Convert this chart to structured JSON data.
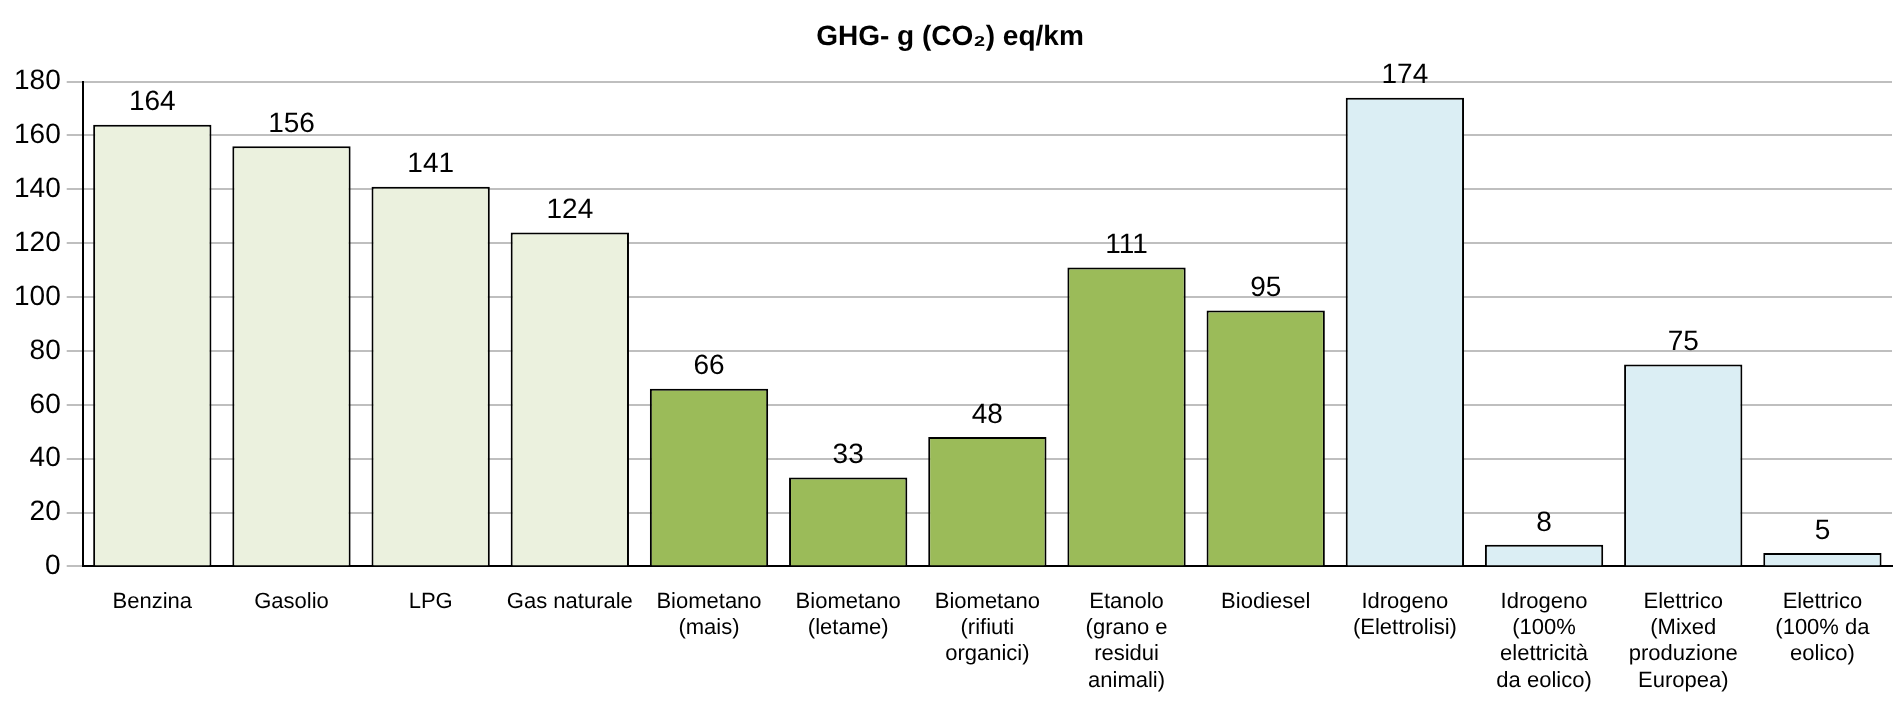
{
  "chart_data": {
    "type": "bar",
    "title": "GHG- g (CO₂) eq/km",
    "categories": [
      "Benzina",
      "Gasolio",
      "LPG",
      "Gas naturale",
      "Biometano (mais)",
      "Biometano (letame)",
      "Biometano (rifiuti organici)",
      "Etanolo (grano e residui animali)",
      "Biodiesel",
      "Idrogeno (Elettrolisi)",
      "Idrogeno (100% elettricità da eolico)",
      "Elettrico (Mixed produzione Europea)",
      "Elettrico (100% da eolico)"
    ],
    "values": [
      164,
      156,
      141,
      124,
      66,
      33,
      48,
      111,
      95,
      174,
      8,
      75,
      5
    ],
    "colors": [
      "#ebf1de",
      "#ebf1de",
      "#ebf1de",
      "#ebf1de",
      "#9bbb59",
      "#9bbb59",
      "#9bbb59",
      "#9bbb59",
      "#9bbb59",
      "#dbeef4",
      "#dbeef4",
      "#dbeef4",
      "#dbeef4"
    ],
    "ylim": [
      0,
      180
    ],
    "yticks": [
      0,
      20,
      40,
      60,
      80,
      100,
      120,
      140,
      160,
      180
    ],
    "grid": "y",
    "legend": false,
    "data_labels": true
  }
}
